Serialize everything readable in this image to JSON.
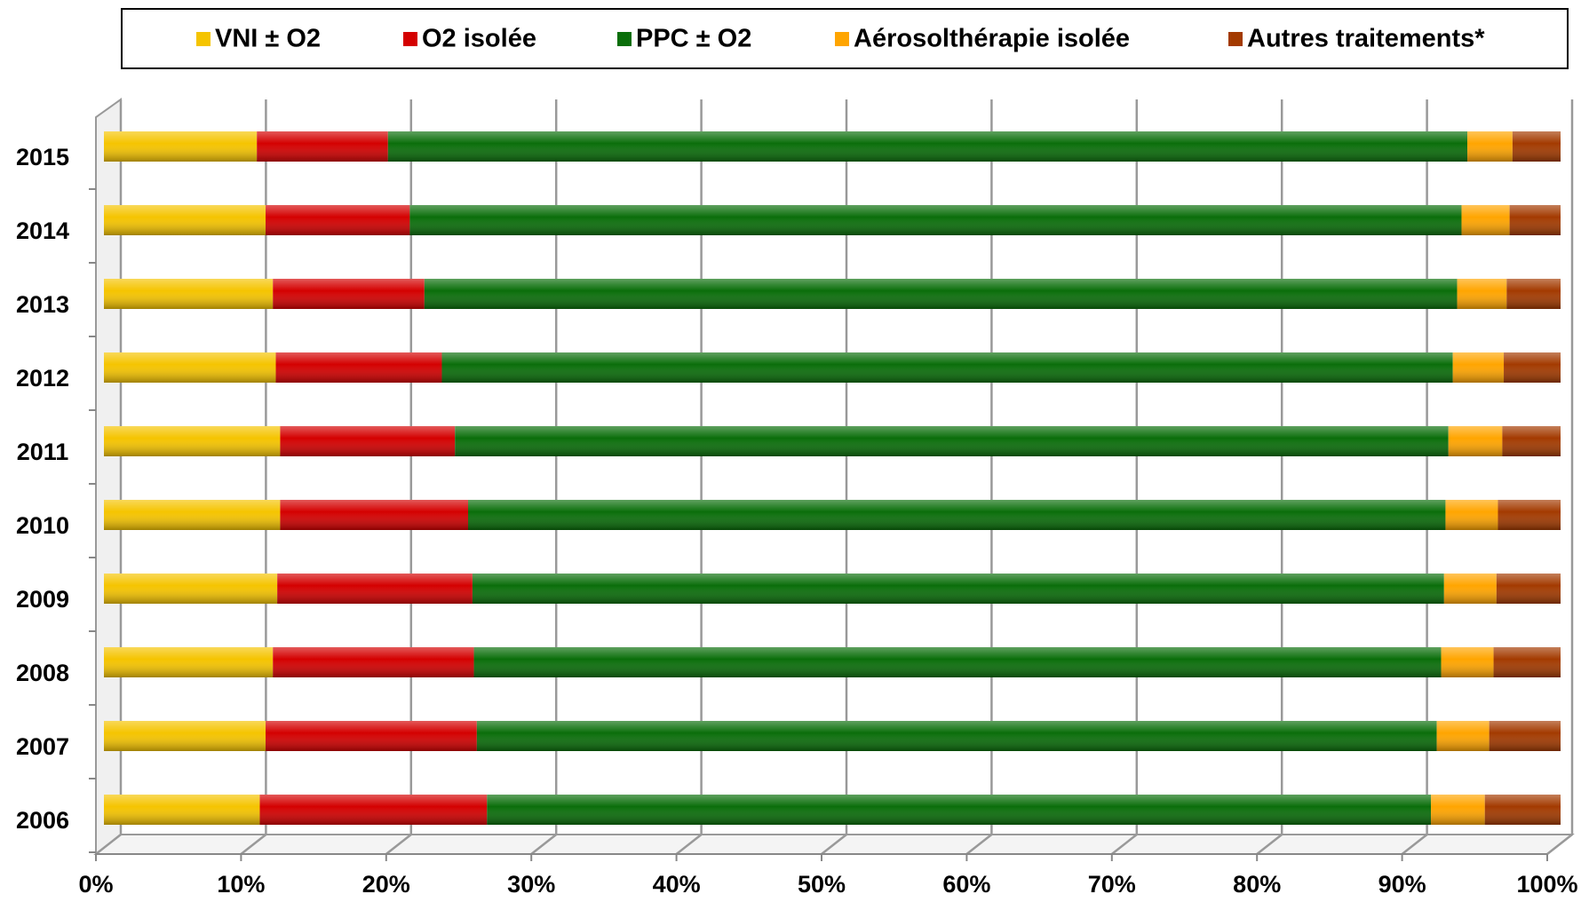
{
  "chart_data": {
    "type": "stacked-bar-horizontal",
    "categories": [
      "2006",
      "2007",
      "2008",
      "2009",
      "2010",
      "2011",
      "2012",
      "2013",
      "2014",
      "2015"
    ],
    "series": [
      {
        "name": "VNI ± O2",
        "color": "#f5c400",
        "values": [
          10.7,
          11.1,
          11.6,
          11.9,
          12.1,
          12.1,
          11.8,
          11.6,
          11.1,
          10.5
        ]
      },
      {
        "name": "O2 isolée",
        "color": "#d40000",
        "values": [
          15.6,
          14.5,
          13.8,
          13.4,
          12.9,
          12.0,
          11.4,
          10.4,
          9.9,
          9.0
        ]
      },
      {
        "name": "PPC ± O2",
        "color": "#0a6e0a",
        "values": [
          64.8,
          65.9,
          66.4,
          66.7,
          67.1,
          68.2,
          69.4,
          70.9,
          72.2,
          74.1
        ]
      },
      {
        "name": "Aérosolthérapie isolée",
        "color": "#ffa500",
        "values": [
          3.7,
          3.6,
          3.6,
          3.6,
          3.6,
          3.7,
          3.5,
          3.4,
          3.3,
          3.1
        ]
      },
      {
        "name": "Autres traitements*",
        "color": "#a33a00",
        "values": [
          5.2,
          4.9,
          4.6,
          4.4,
          4.3,
          4.0,
          3.9,
          3.7,
          3.5,
          3.3
        ]
      }
    ],
    "xlim": [
      0,
      100
    ],
    "xticks": [
      {
        "value": 0,
        "label": "0%"
      },
      {
        "value": 10,
        "label": "10%"
      },
      {
        "value": 20,
        "label": "20%"
      },
      {
        "value": 30,
        "label": "30%"
      },
      {
        "value": 40,
        "label": "40%"
      },
      {
        "value": 50,
        "label": "50%"
      },
      {
        "value": 60,
        "label": "60%"
      },
      {
        "value": 70,
        "label": "70%"
      },
      {
        "value": 80,
        "label": "80%"
      },
      {
        "value": 90,
        "label": "90%"
      },
      {
        "value": 100,
        "label": "100%"
      }
    ],
    "grid": true,
    "legend": "top"
  }
}
